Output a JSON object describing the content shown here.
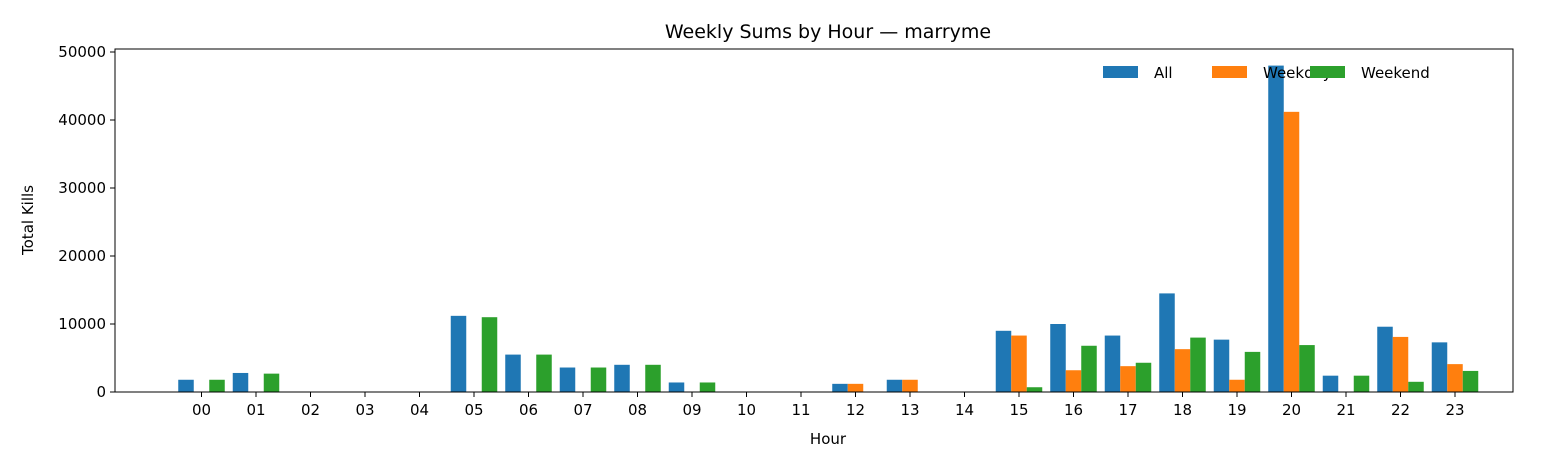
{
  "chart_data": {
    "type": "bar",
    "title": "Weekly Sums by Hour — marryme",
    "xlabel": "Hour",
    "ylabel": "Total Kills",
    "ylim": [
      0,
      50000
    ],
    "yticks": [
      0,
      10000,
      20000,
      30000,
      40000,
      50000
    ],
    "grid": false,
    "legend_position": "top-right",
    "categories": [
      "00",
      "01",
      "02",
      "03",
      "04",
      "05",
      "06",
      "07",
      "08",
      "09",
      "10",
      "11",
      "12",
      "13",
      "14",
      "15",
      "16",
      "17",
      "18",
      "19",
      "20",
      "21",
      "22",
      "23"
    ],
    "series": [
      {
        "name": "All",
        "color": "#1f77b4",
        "values": [
          1800,
          2800,
          0,
          0,
          0,
          11200,
          5500,
          3600,
          4000,
          1400,
          0,
          0,
          1200,
          1800,
          0,
          9000,
          10000,
          8300,
          14500,
          7700,
          48000,
          2400,
          9600,
          7300
        ]
      },
      {
        "name": "Weekdays",
        "color": "#ff7f0e",
        "values": [
          0,
          0,
          0,
          0,
          0,
          0,
          0,
          0,
          0,
          0,
          0,
          0,
          1200,
          1800,
          0,
          8300,
          3200,
          3800,
          6300,
          1800,
          41200,
          0,
          8100,
          4100
        ]
      },
      {
        "name": "Weekend",
        "color": "#2ca02c",
        "values": [
          1800,
          2700,
          0,
          0,
          0,
          11000,
          5500,
          3600,
          4000,
          1400,
          0,
          0,
          0,
          0,
          0,
          700,
          6800,
          4300,
          8000,
          5900,
          6900,
          2400,
          1500,
          3100
        ]
      }
    ]
  }
}
